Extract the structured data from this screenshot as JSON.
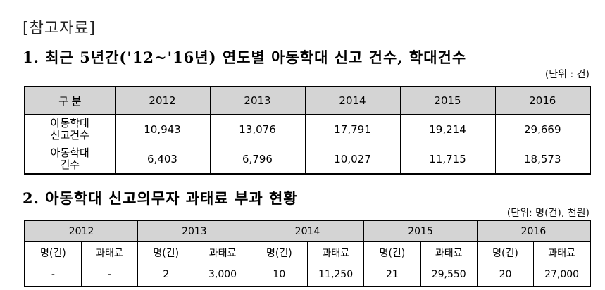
{
  "ref_label": "[참고자료]",
  "section1": {
    "heading": "1. 최근 5년간('12~'16년) 연도별 아동학대 신고 건수, 학대건수",
    "unit": "(단위 : 건)",
    "header_label": "구 분",
    "years": [
      "2012",
      "2013",
      "2014",
      "2015",
      "2016"
    ],
    "rows": [
      {
        "label_line1": "아동학대",
        "label_line2": "신고건수",
        "values": [
          "10,943",
          "13,076",
          "17,791",
          "19,214",
          "29,669"
        ]
      },
      {
        "label_line1": "아동학대",
        "label_line2": "건수",
        "values": [
          "6,403",
          "6,796",
          "10,027",
          "11,715",
          "18,573"
        ]
      }
    ]
  },
  "section2": {
    "heading": "2. 아동학대 신고의무자 과태료 부과 현황",
    "unit": "(단위: 명(건), 천원)",
    "years": [
      "2012",
      "2013",
      "2014",
      "2015",
      "2016"
    ],
    "sub_headers": [
      "명(건)",
      "과태료"
    ],
    "values": [
      "-",
      "-",
      "2",
      "3,000",
      "10",
      "11,250",
      "21",
      "29,550",
      "20",
      "27,000"
    ]
  }
}
